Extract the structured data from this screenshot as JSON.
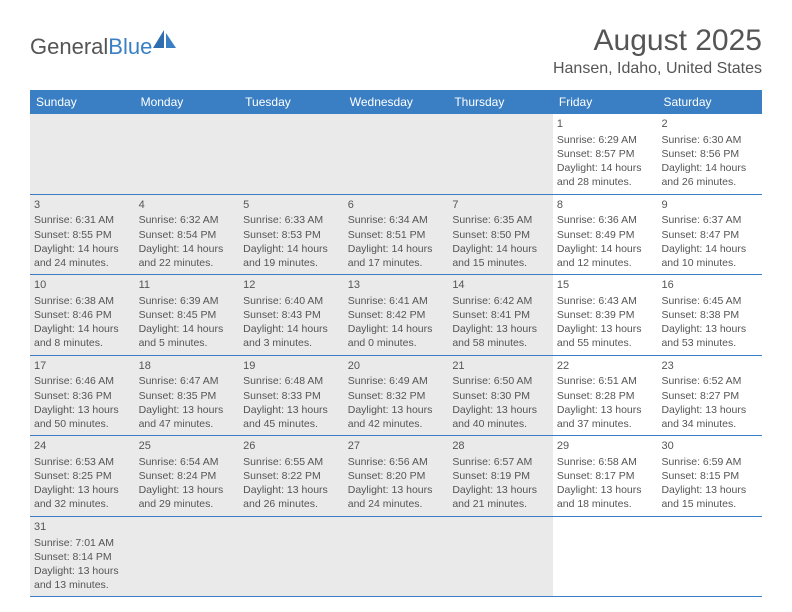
{
  "logo": {
    "general": "General",
    "blue": "Blue"
  },
  "title": "August 2025",
  "subtitle": "Hansen, Idaho, United States",
  "styling": {
    "accent_color": "#3a7fc4",
    "shaded_bg": "#eaeaea",
    "text_color": "#555555",
    "background_color": "#ffffff",
    "header_fontsize": 30,
    "subtitle_fontsize": 16,
    "dayheader_fontsize": 12,
    "cell_fontsize": 10.5
  },
  "day_headers": [
    "Sunday",
    "Monday",
    "Tuesday",
    "Wednesday",
    "Thursday",
    "Friday",
    "Saturday"
  ],
  "weeks": [
    [
      {
        "shaded": true
      },
      {
        "shaded": true
      },
      {
        "shaded": true
      },
      {
        "shaded": true
      },
      {
        "shaded": true
      },
      {
        "day": "1",
        "sunrise": "Sunrise: 6:29 AM",
        "sunset": "Sunset: 8:57 PM",
        "daylight1": "Daylight: 14 hours",
        "daylight2": "and 28 minutes."
      },
      {
        "day": "2",
        "sunrise": "Sunrise: 6:30 AM",
        "sunset": "Sunset: 8:56 PM",
        "daylight1": "Daylight: 14 hours",
        "daylight2": "and 26 minutes."
      }
    ],
    [
      {
        "day": "3",
        "shaded": true,
        "sunrise": "Sunrise: 6:31 AM",
        "sunset": "Sunset: 8:55 PM",
        "daylight1": "Daylight: 14 hours",
        "daylight2": "and 24 minutes."
      },
      {
        "day": "4",
        "shaded": true,
        "sunrise": "Sunrise: 6:32 AM",
        "sunset": "Sunset: 8:54 PM",
        "daylight1": "Daylight: 14 hours",
        "daylight2": "and 22 minutes."
      },
      {
        "day": "5",
        "shaded": true,
        "sunrise": "Sunrise: 6:33 AM",
        "sunset": "Sunset: 8:53 PM",
        "daylight1": "Daylight: 14 hours",
        "daylight2": "and 19 minutes."
      },
      {
        "day": "6",
        "shaded": true,
        "sunrise": "Sunrise: 6:34 AM",
        "sunset": "Sunset: 8:51 PM",
        "daylight1": "Daylight: 14 hours",
        "daylight2": "and 17 minutes."
      },
      {
        "day": "7",
        "shaded": true,
        "sunrise": "Sunrise: 6:35 AM",
        "sunset": "Sunset: 8:50 PM",
        "daylight1": "Daylight: 14 hours",
        "daylight2": "and 15 minutes."
      },
      {
        "day": "8",
        "sunrise": "Sunrise: 6:36 AM",
        "sunset": "Sunset: 8:49 PM",
        "daylight1": "Daylight: 14 hours",
        "daylight2": "and 12 minutes."
      },
      {
        "day": "9",
        "sunrise": "Sunrise: 6:37 AM",
        "sunset": "Sunset: 8:47 PM",
        "daylight1": "Daylight: 14 hours",
        "daylight2": "and 10 minutes."
      }
    ],
    [
      {
        "day": "10",
        "shaded": true,
        "sunrise": "Sunrise: 6:38 AM",
        "sunset": "Sunset: 8:46 PM",
        "daylight1": "Daylight: 14 hours",
        "daylight2": "and 8 minutes."
      },
      {
        "day": "11",
        "shaded": true,
        "sunrise": "Sunrise: 6:39 AM",
        "sunset": "Sunset: 8:45 PM",
        "daylight1": "Daylight: 14 hours",
        "daylight2": "and 5 minutes."
      },
      {
        "day": "12",
        "shaded": true,
        "sunrise": "Sunrise: 6:40 AM",
        "sunset": "Sunset: 8:43 PM",
        "daylight1": "Daylight: 14 hours",
        "daylight2": "and 3 minutes."
      },
      {
        "day": "13",
        "shaded": true,
        "sunrise": "Sunrise: 6:41 AM",
        "sunset": "Sunset: 8:42 PM",
        "daylight1": "Daylight: 14 hours",
        "daylight2": "and 0 minutes."
      },
      {
        "day": "14",
        "shaded": true,
        "sunrise": "Sunrise: 6:42 AM",
        "sunset": "Sunset: 8:41 PM",
        "daylight1": "Daylight: 13 hours",
        "daylight2": "and 58 minutes."
      },
      {
        "day": "15",
        "sunrise": "Sunrise: 6:43 AM",
        "sunset": "Sunset: 8:39 PM",
        "daylight1": "Daylight: 13 hours",
        "daylight2": "and 55 minutes."
      },
      {
        "day": "16",
        "sunrise": "Sunrise: 6:45 AM",
        "sunset": "Sunset: 8:38 PM",
        "daylight1": "Daylight: 13 hours",
        "daylight2": "and 53 minutes."
      }
    ],
    [
      {
        "day": "17",
        "shaded": true,
        "sunrise": "Sunrise: 6:46 AM",
        "sunset": "Sunset: 8:36 PM",
        "daylight1": "Daylight: 13 hours",
        "daylight2": "and 50 minutes."
      },
      {
        "day": "18",
        "shaded": true,
        "sunrise": "Sunrise: 6:47 AM",
        "sunset": "Sunset: 8:35 PM",
        "daylight1": "Daylight: 13 hours",
        "daylight2": "and 47 minutes."
      },
      {
        "day": "19",
        "shaded": true,
        "sunrise": "Sunrise: 6:48 AM",
        "sunset": "Sunset: 8:33 PM",
        "daylight1": "Daylight: 13 hours",
        "daylight2": "and 45 minutes."
      },
      {
        "day": "20",
        "shaded": true,
        "sunrise": "Sunrise: 6:49 AM",
        "sunset": "Sunset: 8:32 PM",
        "daylight1": "Daylight: 13 hours",
        "daylight2": "and 42 minutes."
      },
      {
        "day": "21",
        "shaded": true,
        "sunrise": "Sunrise: 6:50 AM",
        "sunset": "Sunset: 8:30 PM",
        "daylight1": "Daylight: 13 hours",
        "daylight2": "and 40 minutes."
      },
      {
        "day": "22",
        "sunrise": "Sunrise: 6:51 AM",
        "sunset": "Sunset: 8:28 PM",
        "daylight1": "Daylight: 13 hours",
        "daylight2": "and 37 minutes."
      },
      {
        "day": "23",
        "sunrise": "Sunrise: 6:52 AM",
        "sunset": "Sunset: 8:27 PM",
        "daylight1": "Daylight: 13 hours",
        "daylight2": "and 34 minutes."
      }
    ],
    [
      {
        "day": "24",
        "shaded": true,
        "sunrise": "Sunrise: 6:53 AM",
        "sunset": "Sunset: 8:25 PM",
        "daylight1": "Daylight: 13 hours",
        "daylight2": "and 32 minutes."
      },
      {
        "day": "25",
        "shaded": true,
        "sunrise": "Sunrise: 6:54 AM",
        "sunset": "Sunset: 8:24 PM",
        "daylight1": "Daylight: 13 hours",
        "daylight2": "and 29 minutes."
      },
      {
        "day": "26",
        "shaded": true,
        "sunrise": "Sunrise: 6:55 AM",
        "sunset": "Sunset: 8:22 PM",
        "daylight1": "Daylight: 13 hours",
        "daylight2": "and 26 minutes."
      },
      {
        "day": "27",
        "shaded": true,
        "sunrise": "Sunrise: 6:56 AM",
        "sunset": "Sunset: 8:20 PM",
        "daylight1": "Daylight: 13 hours",
        "daylight2": "and 24 minutes."
      },
      {
        "day": "28",
        "shaded": true,
        "sunrise": "Sunrise: 6:57 AM",
        "sunset": "Sunset: 8:19 PM",
        "daylight1": "Daylight: 13 hours",
        "daylight2": "and 21 minutes."
      },
      {
        "day": "29",
        "sunrise": "Sunrise: 6:58 AM",
        "sunset": "Sunset: 8:17 PM",
        "daylight1": "Daylight: 13 hours",
        "daylight2": "and 18 minutes."
      },
      {
        "day": "30",
        "sunrise": "Sunrise: 6:59 AM",
        "sunset": "Sunset: 8:15 PM",
        "daylight1": "Daylight: 13 hours",
        "daylight2": "and 15 minutes."
      }
    ],
    [
      {
        "day": "31",
        "shaded": true,
        "sunrise": "Sunrise: 7:01 AM",
        "sunset": "Sunset: 8:14 PM",
        "daylight1": "Daylight: 13 hours",
        "daylight2": "and 13 minutes."
      },
      {
        "shaded": true
      },
      {
        "shaded": true
      },
      {
        "shaded": true
      },
      {
        "shaded": true
      },
      {},
      {}
    ]
  ]
}
